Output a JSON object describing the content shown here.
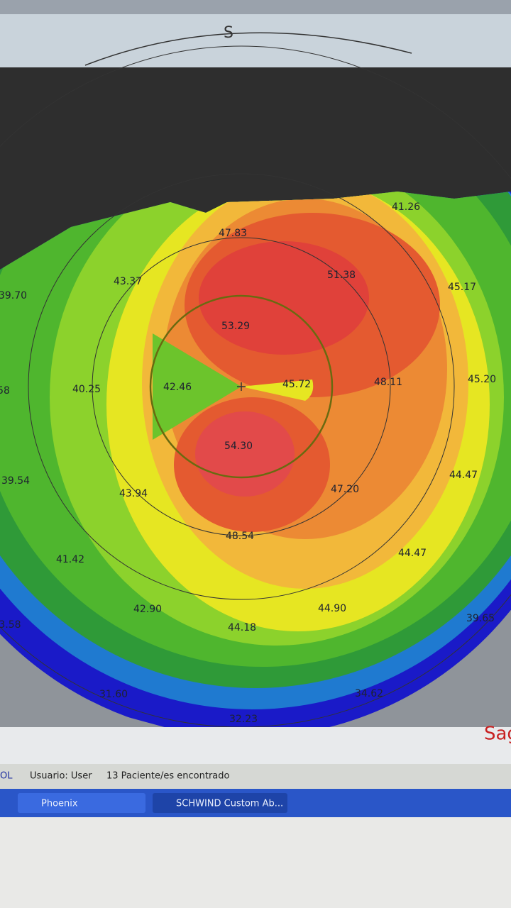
{
  "header": {
    "top_label": "S"
  },
  "map": {
    "labels": [
      "41.26",
      "47.83",
      "51.38",
      "43.37",
      "45.17",
      "39.70",
      "53.29",
      "58",
      "40.25",
      "42.46",
      "45.72",
      "48.11",
      "45.20",
      "54.30",
      "39.54",
      "43.94",
      "47.20",
      "44.47",
      "48.54",
      "44.47",
      "41.42",
      "42.90",
      "44.90",
      "44.18",
      "39.65",
      "3.58",
      "31.60",
      "34.62",
      "32.23"
    ]
  },
  "side_label": "Sag",
  "status_bar": {
    "items": [
      "OL",
      "Usuario: User",
      "13 Paciente/es encontrado"
    ]
  },
  "taskbar": {
    "items": [
      "Phoenix",
      "SCHWIND Custom Ab..."
    ]
  }
}
